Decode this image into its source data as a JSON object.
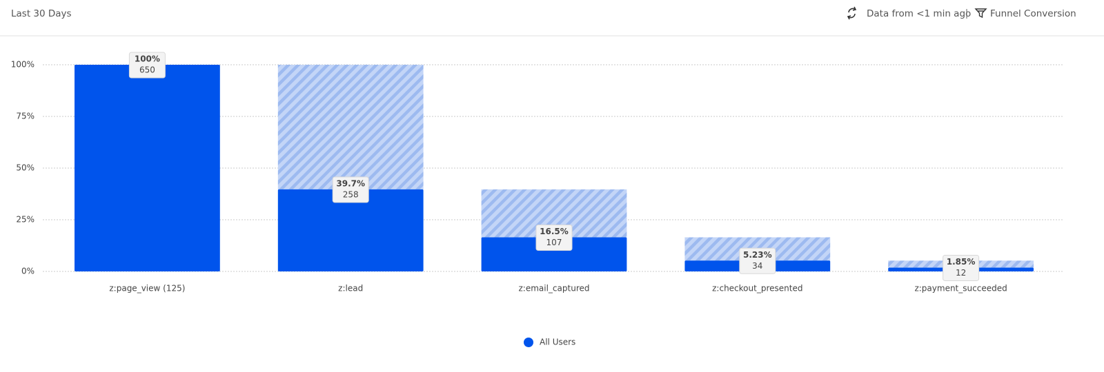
{
  "header": {
    "range": "Last 30 Days",
    "freshness": "Data from <1 min ago",
    "view": "Funnel Conversion"
  },
  "chart_data": {
    "type": "funnel",
    "categories": [
      "z:page_view (125)",
      "z:lead",
      "z:email_captured",
      "z:checkout_presented",
      "z:payment_succeeded"
    ],
    "series": [
      {
        "name": "All Users",
        "color": "#0054ec",
        "values": [
          100,
          39.7,
          16.5,
          5.23,
          1.85
        ],
        "value_labels": [
          "100%",
          "39.7%",
          "16.5%",
          "5.23%",
          "1.85%"
        ],
        "counts": [
          650,
          258,
          107,
          34,
          12
        ]
      }
    ],
    "ylim": [
      0,
      100
    ],
    "yticks": [
      {
        "value": 0,
        "label": "0%"
      },
      {
        "value": 25,
        "label": "25%"
      },
      {
        "value": 50,
        "label": "50%"
      },
      {
        "value": 75,
        "label": "75%"
      },
      {
        "value": 100,
        "label": "100%"
      }
    ],
    "grid": true,
    "legend": "bottom"
  }
}
